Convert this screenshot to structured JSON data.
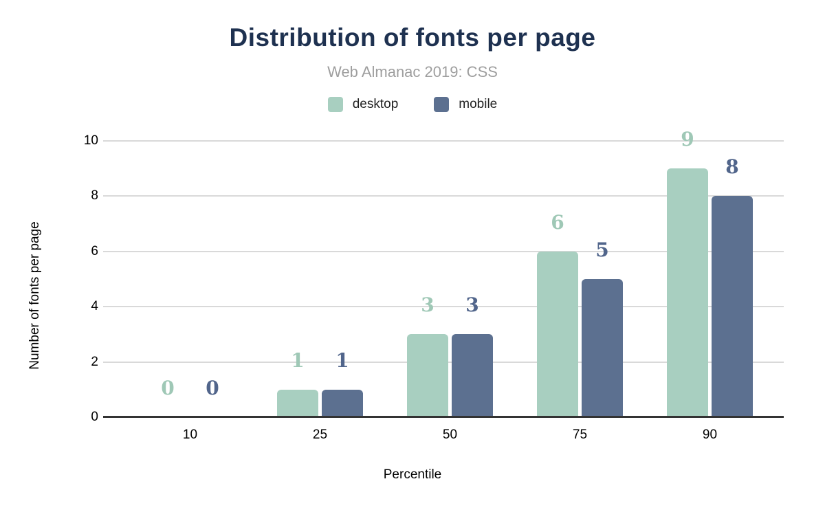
{
  "chart_data": {
    "type": "bar",
    "title": "Distribution of fonts per page",
    "subtitle": "Web Almanac 2019: CSS",
    "xlabel": "Percentile",
    "ylabel": "Number of fonts per page",
    "categories": [
      "10",
      "25",
      "50",
      "75",
      "90"
    ],
    "series": [
      {
        "name": "desktop",
        "color": "#a8cfc0",
        "label_color": "#9fc8b6",
        "values": [
          0,
          1,
          3,
          6,
          9
        ]
      },
      {
        "name": "mobile",
        "color": "#5c7090",
        "label_color": "#51658b",
        "values": [
          0,
          1,
          3,
          5,
          8
        ]
      }
    ],
    "ylim": [
      0,
      10
    ],
    "ytick_step": 2,
    "yticks": [
      0,
      2,
      4,
      6,
      8,
      10
    ],
    "grid": "horizontal",
    "legend_position": "top",
    "colors": {
      "title": "#1e3150",
      "subtitle": "#9e9e9e",
      "axis_text": "#000000",
      "gridline": "#d9d9d9",
      "axis_line": "#333333",
      "background": "#ffffff"
    }
  }
}
